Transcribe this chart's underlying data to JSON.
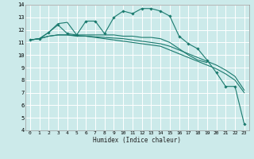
{
  "xlabel": "Humidex (Indice chaleur)",
  "bg_color": "#cceaea",
  "grid_color": "#ffffff",
  "line_color": "#1a7a6e",
  "xlim": [
    -0.5,
    23.5
  ],
  "ylim": [
    4,
    14
  ],
  "xticks": [
    0,
    1,
    2,
    3,
    4,
    5,
    6,
    7,
    8,
    9,
    10,
    11,
    12,
    13,
    14,
    15,
    16,
    17,
    18,
    19,
    20,
    21,
    22,
    23
  ],
  "yticks": [
    4,
    5,
    6,
    7,
    8,
    9,
    10,
    11,
    12,
    13,
    14
  ],
  "series": [
    {
      "x": [
        0,
        1,
        2,
        3,
        4,
        5,
        6,
        7,
        8,
        9,
        10,
        11,
        12,
        13,
        14,
        15,
        16,
        17,
        18,
        19,
        20,
        21,
        22,
        23
      ],
      "y": [
        11.2,
        11.3,
        11.8,
        12.4,
        11.7,
        11.6,
        12.7,
        12.7,
        11.7,
        13.0,
        13.5,
        13.3,
        13.7,
        13.7,
        13.5,
        13.1,
        11.5,
        10.9,
        10.5,
        9.6,
        8.6,
        7.5,
        7.5,
        4.5
      ],
      "marker": true
    },
    {
      "x": [
        0,
        1,
        2,
        3,
        4,
        5,
        6,
        7,
        8,
        9,
        10,
        11,
        12,
        13,
        14,
        15,
        16,
        17,
        18,
        19
      ],
      "y": [
        11.2,
        11.3,
        11.8,
        12.5,
        12.6,
        11.6,
        11.6,
        11.6,
        11.6,
        11.6,
        11.5,
        11.5,
        11.4,
        11.4,
        11.3,
        11.0,
        10.5,
        10.0,
        9.6,
        9.4
      ],
      "marker": false
    },
    {
      "x": [
        0,
        1,
        2,
        3,
        4,
        5,
        6,
        7,
        8,
        9,
        10,
        11,
        12,
        13,
        14,
        15,
        16,
        17,
        18,
        19,
        20,
        21,
        22,
        23
      ],
      "y": [
        11.2,
        11.3,
        11.5,
        11.6,
        11.6,
        11.5,
        11.5,
        11.4,
        11.3,
        11.2,
        11.1,
        11.0,
        10.9,
        10.8,
        10.7,
        10.4,
        10.1,
        9.8,
        9.5,
        9.2,
        8.9,
        8.5,
        8.0,
        7.0
      ],
      "marker": false
    },
    {
      "x": [
        0,
        1,
        2,
        3,
        4,
        5,
        6,
        7,
        8,
        9,
        10,
        11,
        12,
        13,
        14,
        15,
        16,
        17,
        18,
        19,
        20,
        21,
        22,
        23
      ],
      "y": [
        11.2,
        11.3,
        11.5,
        11.6,
        11.6,
        11.55,
        11.5,
        11.45,
        11.4,
        11.35,
        11.3,
        11.2,
        11.1,
        11.0,
        10.9,
        10.7,
        10.4,
        10.1,
        9.8,
        9.5,
        9.2,
        8.8,
        8.3,
        7.2
      ],
      "marker": false
    }
  ]
}
